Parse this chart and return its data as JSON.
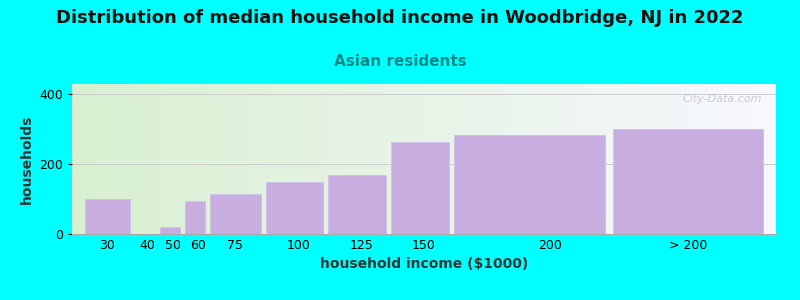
{
  "title": "Distribution of median household income in Woodbridge, NJ in 2022",
  "subtitle": "Asian residents",
  "xlabel": "household income ($1000)",
  "ylabel": "households",
  "background_color": "#00FFFF",
  "bar_color": "#c8aee0",
  "bar_edge_color": "#d0bcec",
  "watermark": "City-Data.com",
  "title_fontsize": 13,
  "subtitle_fontsize": 11,
  "axis_label_fontsize": 10,
  "tick_fontsize": 9,
  "categories": [
    "30",
    "40",
    "50",
    "60",
    "75",
    "100",
    "125",
    "150",
    "200",
    "> 200"
  ],
  "left_edges": [
    15,
    35,
    45,
    55,
    65,
    87,
    112,
    137,
    162,
    225
  ],
  "widths": [
    18,
    8,
    8,
    8,
    20,
    23,
    23,
    23,
    60,
    60
  ],
  "values": [
    100,
    0,
    20,
    95,
    115,
    150,
    170,
    265,
    285,
    300
  ],
  "tick_positions": [
    24,
    40,
    50,
    60,
    75,
    100,
    125,
    150,
    200,
    255
  ],
  "xlim": [
    10,
    290
  ],
  "ylim": [
    0,
    430
  ],
  "yticks": [
    0,
    200,
    400
  ],
  "grid_color": "#e8e8e8"
}
